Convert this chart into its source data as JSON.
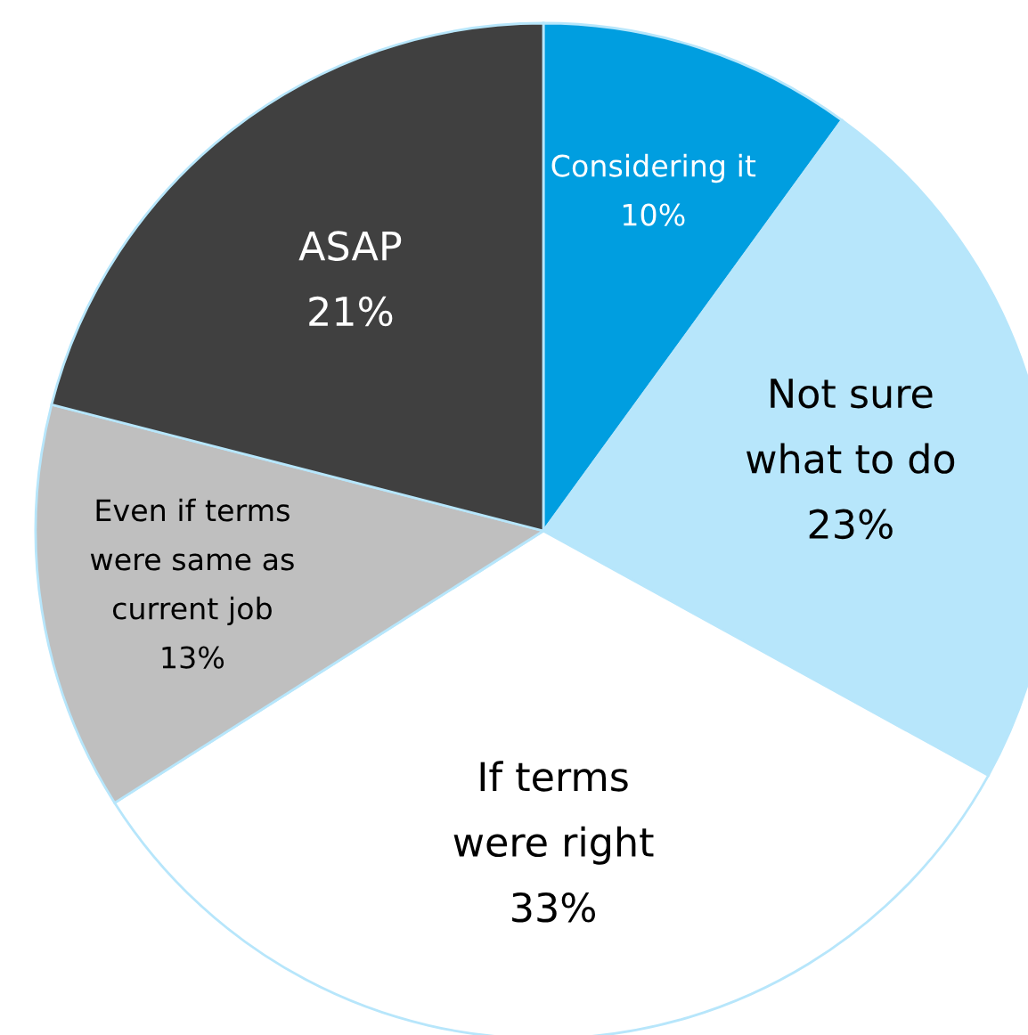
{
  "chart_data": {
    "type": "pie",
    "categories": [
      "Considering it",
      "Not sure\nwhat to do",
      "If terms\nwere right",
      "Even if terms\nwere same as\ncurrent job",
      "ASAP"
    ],
    "values": [
      10,
      23,
      33,
      13,
      21
    ],
    "value_labels": [
      "10%",
      "23%",
      "33%",
      "13%",
      "21%"
    ],
    "colors": [
      "#009ee0",
      "#b7e6fb",
      "#ffffff",
      "#bfbfbf",
      "#404040"
    ],
    "legend": false
  }
}
